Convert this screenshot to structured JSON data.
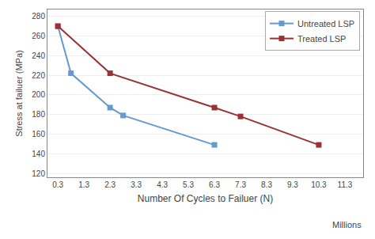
{
  "chart_data": {
    "type": "line",
    "xlabel": "Number Of Cycles to Failuer (N)",
    "ylabel": "Stress at failuer (MPa)",
    "annotations": [
      "Millions"
    ],
    "series": [
      {
        "name": "Untreated LSP",
        "color": "#6699CC",
        "marker": "square",
        "line_style": "solid",
        "x": [
          0.3,
          0.8,
          2.3,
          2.8,
          6.3
        ],
        "values": [
          270,
          222,
          187,
          179,
          149
        ]
      },
      {
        "name": "Treated LSP",
        "color": "#993333",
        "marker": "square",
        "line_style": "solid",
        "x": [
          0.3,
          2.3,
          6.3,
          7.3,
          10.3
        ],
        "values": [
          270,
          222,
          187,
          178,
          149
        ]
      }
    ],
    "xlim": [
      -0.1,
      12.0
    ],
    "ylim": [
      116,
      287
    ],
    "xticks": [
      0.3,
      1.3,
      2.3,
      3.3,
      4.3,
      5.3,
      6.3,
      7.3,
      8.3,
      9.3,
      10.3,
      11.3
    ],
    "yticks": [
      120,
      140,
      160,
      180,
      200,
      220,
      240,
      260,
      280
    ],
    "grid": "y",
    "legend": "upper right"
  }
}
